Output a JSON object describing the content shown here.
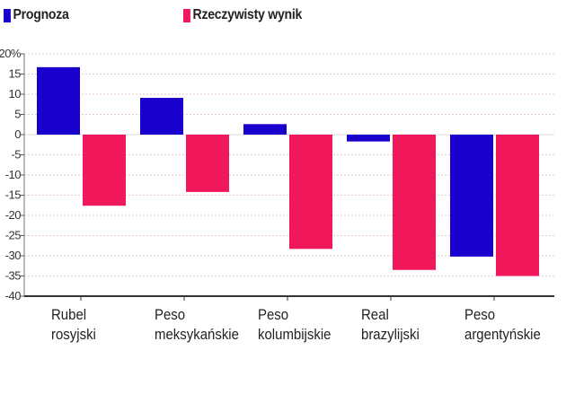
{
  "chart_data": {
    "type": "bar",
    "title": "",
    "xlabel": "",
    "ylabel": "",
    "categories": [
      [
        "Rubel",
        "rosyjski"
      ],
      [
        "Peso",
        "meksykańskie"
      ],
      [
        "Peso",
        "kolumbijskie"
      ],
      [
        "Real",
        "brazylijski"
      ],
      [
        "Peso",
        "argentyńskie"
      ]
    ],
    "series": [
      {
        "name": "Prognoza",
        "color": "#1a00cc",
        "values": [
          16.7,
          9.1,
          2.6,
          -1.7,
          -30.2
        ]
      },
      {
        "name": "Rzeczywisty wynik",
        "color": "#f0175a",
        "values": [
          -17.6,
          -14.2,
          -28.3,
          -33.5,
          -35.0
        ]
      }
    ],
    "ylim": [
      -40,
      20
    ],
    "yticks": [
      "20%",
      "15",
      "10",
      "5",
      "0",
      "-5",
      "-10",
      "-15",
      "-20",
      "-25",
      "-30",
      "-35",
      "-40"
    ],
    "ytick_values": [
      20,
      15,
      10,
      5,
      0,
      -5,
      -10,
      -15,
      -20,
      -25,
      -30,
      -35,
      -40
    ],
    "grid": true,
    "legend_position": "top-left"
  }
}
